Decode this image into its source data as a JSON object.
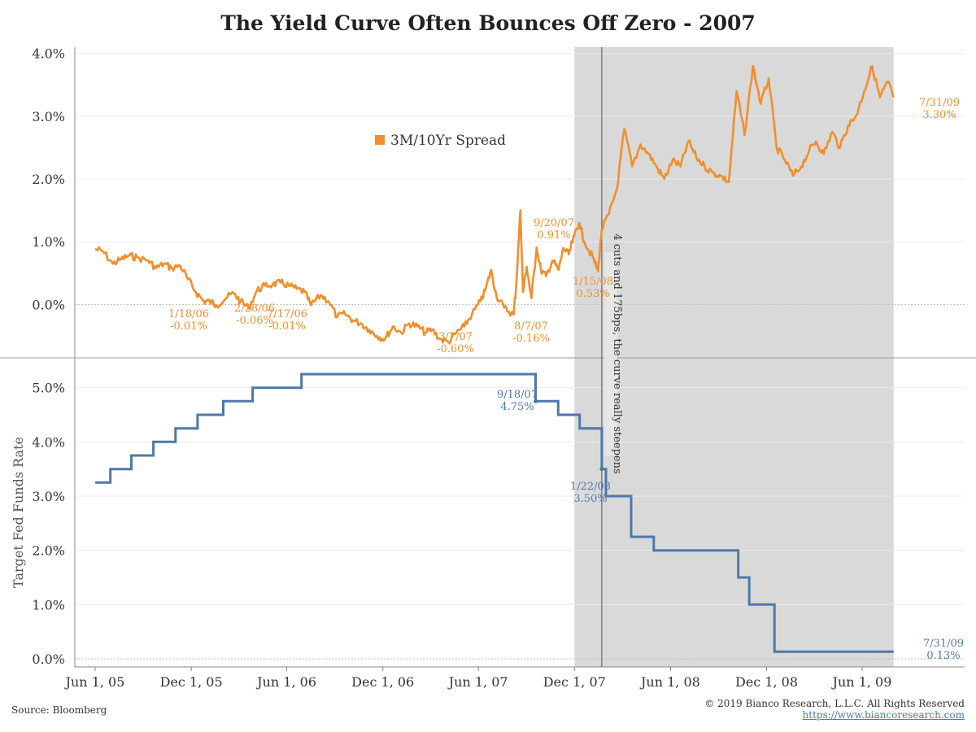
{
  "title": "The Yield Curve Often Bounces Off Zero - 2007",
  "source": "Source: Bloomberg",
  "copyright": "© 2019 Bianco Research, L.L.C. All Rights Reserved",
  "website": "https://www.biancoresearch.com",
  "colors": {
    "spread": "#f28e2b",
    "fed": "#4e79a7",
    "shade": "#d9d9d9"
  },
  "chart_data": [
    {
      "type": "line",
      "series": [
        {
          "name": "3M/10Yr Spread",
          "x": [
            "2005-06-01",
            "2005-06-15",
            "2005-07-05",
            "2005-07-20",
            "2005-08-05",
            "2005-08-20",
            "2005-09-10",
            "2005-09-25",
            "2005-10-10",
            "2005-10-25",
            "2005-11-10",
            "2005-11-25",
            "2005-12-10",
            "2005-12-25",
            "2006-01-05",
            "2006-01-18",
            "2006-02-05",
            "2006-02-20",
            "2006-03-05",
            "2006-03-20",
            "2006-04-05",
            "2006-04-20",
            "2006-05-05",
            "2006-05-20",
            "2006-06-05",
            "2006-06-20",
            "2006-07-05",
            "2006-07-17",
            "2006-08-05",
            "2006-08-20",
            "2006-09-05",
            "2006-09-20",
            "2006-10-05",
            "2006-10-20",
            "2006-11-05",
            "2006-11-20",
            "2006-12-05",
            "2006-12-20",
            "2007-01-05",
            "2007-01-20",
            "2007-02-05",
            "2007-02-20",
            "2007-03-05",
            "2007-03-20",
            "2007-04-05",
            "2007-04-20",
            "2007-05-05",
            "2007-05-20",
            "2007-06-05",
            "2007-06-15",
            "2007-06-25",
            "2007-07-05",
            "2007-07-20",
            "2007-08-07",
            "2007-08-12",
            "2007-08-20",
            "2007-08-25",
            "2007-09-01",
            "2007-09-10",
            "2007-09-20",
            "2007-09-28",
            "2007-10-08",
            "2007-10-20",
            "2007-11-01",
            "2007-11-10",
            "2007-11-20",
            "2007-12-01",
            "2007-12-10",
            "2007-12-20",
            "2008-01-05",
            "2008-01-15",
            "2008-01-22",
            "2008-02-05",
            "2008-02-20",
            "2008-03-05",
            "2008-03-20",
            "2008-04-05",
            "2008-04-20",
            "2008-05-05",
            "2008-05-20",
            "2008-06-05",
            "2008-06-20",
            "2008-07-05",
            "2008-07-20",
            "2008-08-05",
            "2008-08-20",
            "2008-09-05",
            "2008-09-20",
            "2008-10-05",
            "2008-10-20",
            "2008-11-05",
            "2008-11-20",
            "2008-12-05",
            "2008-12-20",
            "2009-01-05",
            "2009-01-20",
            "2009-02-05",
            "2009-02-20",
            "2009-03-05",
            "2009-03-20",
            "2009-04-05",
            "2009-04-20",
            "2009-05-05",
            "2009-05-20",
            "2009-06-05",
            "2009-06-20",
            "2009-07-05",
            "2009-07-20",
            "2009-07-31"
          ],
          "values": [
            0.88,
            0.85,
            0.65,
            0.72,
            0.78,
            0.75,
            0.7,
            0.58,
            0.65,
            0.58,
            0.62,
            0.4,
            0.2,
            0.05,
            0.05,
            -0.01,
            0.1,
            0.18,
            0.05,
            -0.06,
            0.22,
            0.3,
            0.32,
            0.35,
            0.3,
            0.25,
            0.2,
            -0.01,
            0.15,
            0.05,
            -0.2,
            -0.15,
            -0.25,
            -0.3,
            -0.4,
            -0.5,
            -0.55,
            -0.35,
            -0.45,
            -0.3,
            -0.35,
            -0.45,
            -0.4,
            -0.55,
            -0.6,
            -0.45,
            -0.35,
            -0.15,
            0.05,
            0.25,
            0.55,
            0.15,
            -0.05,
            -0.16,
            0.3,
            1.5,
            0.2,
            0.6,
            0.1,
            0.91,
            0.55,
            0.45,
            0.7,
            0.55,
            0.9,
            0.8,
            1.1,
            1.3,
            1.0,
            0.75,
            0.53,
            1.2,
            1.45,
            1.85,
            2.8,
            2.2,
            2.55,
            2.4,
            2.2,
            2.0,
            2.3,
            2.2,
            2.6,
            2.35,
            2.2,
            2.1,
            2.05,
            1.95,
            3.4,
            2.7,
            3.8,
            3.2,
            3.6,
            2.5,
            2.3,
            2.05,
            2.2,
            2.45,
            2.6,
            2.4,
            2.75,
            2.5,
            2.85,
            3.0,
            3.4,
            3.8,
            3.3,
            3.55,
            3.3
          ],
          "annotations": [
            {
              "date": "1/18/06",
              "value": "-0.01%"
            },
            {
              "date": "2/28/06",
              "value": "-0.06%"
            },
            {
              "date": "7/17/06",
              "value": "-0.01%"
            },
            {
              "date": "3/7/07",
              "value": "-0.60%"
            },
            {
              "date": "8/7/07",
              "value": "-0.16%"
            },
            {
              "date": "9/20/07",
              "value": "0.91%"
            },
            {
              "date": "1/15/08",
              "value": "0.53%"
            },
            {
              "date": "7/31/09",
              "value": "3.30%"
            }
          ]
        }
      ],
      "ylim": [
        -0.85,
        4.1
      ],
      "yticks": [
        "4.0%",
        "3.0%",
        "2.0%",
        "1.0%",
        "0.0%"
      ],
      "ytick_values": [
        4,
        3,
        2,
        1,
        0
      ],
      "legend": "top-center",
      "ylabel": ""
    },
    {
      "type": "line",
      "series": [
        {
          "name": "Target Fed Funds Rate",
          "x": [
            "2005-06-01",
            "2005-06-30",
            "2005-08-09",
            "2005-09-20",
            "2005-11-01",
            "2005-12-13",
            "2006-01-31",
            "2006-03-28",
            "2006-05-10",
            "2006-06-29",
            "2007-09-18",
            "2007-10-31",
            "2007-12-11",
            "2008-01-22",
            "2008-01-30",
            "2008-03-18",
            "2008-04-30",
            "2008-10-08",
            "2008-10-29",
            "2008-12-16",
            "2009-07-31"
          ],
          "values": [
            3.25,
            3.5,
            3.75,
            4.0,
            4.25,
            4.5,
            4.75,
            5.0,
            5.0,
            5.25,
            4.75,
            4.5,
            4.25,
            3.5,
            3.0,
            2.25,
            2.0,
            1.5,
            1.0,
            0.13,
            0.13
          ],
          "annotations": [
            {
              "date": "9/18/07",
              "value": "4.75%"
            },
            {
              "date": "1/22/08",
              "value": "3.50%"
            },
            {
              "date": "7/31/09",
              "value": "0.13%"
            }
          ]
        }
      ],
      "ylim": [
        -0.15,
        5.55
      ],
      "yticks": [
        "5.0%",
        "4.0%",
        "3.0%",
        "2.0%",
        "1.0%",
        "0.0%"
      ],
      "ytick_values": [
        5,
        4,
        3,
        2,
        1,
        0
      ],
      "ylabel": "Target Fed Funds Rate"
    }
  ],
  "xticks": [
    "Jun 1, 05",
    "Dec 1, 05",
    "Jun 1, 06",
    "Dec 1, 06",
    "Jun 1, 07",
    "Dec 1, 07",
    "Jun 1, 08",
    "Dec 1, 08",
    "Jun 1, 09"
  ],
  "xtick_dates": [
    "2005-06-01",
    "2005-12-01",
    "2006-06-01",
    "2006-12-01",
    "2007-06-01",
    "2007-12-01",
    "2008-06-01",
    "2008-12-01",
    "2009-06-01"
  ],
  "shaded_range": [
    "2007-12-01",
    "2009-07-31"
  ],
  "event_line": {
    "date": "2008-01-22",
    "label": "4 cuts and 175bps, the curve really steepens"
  }
}
